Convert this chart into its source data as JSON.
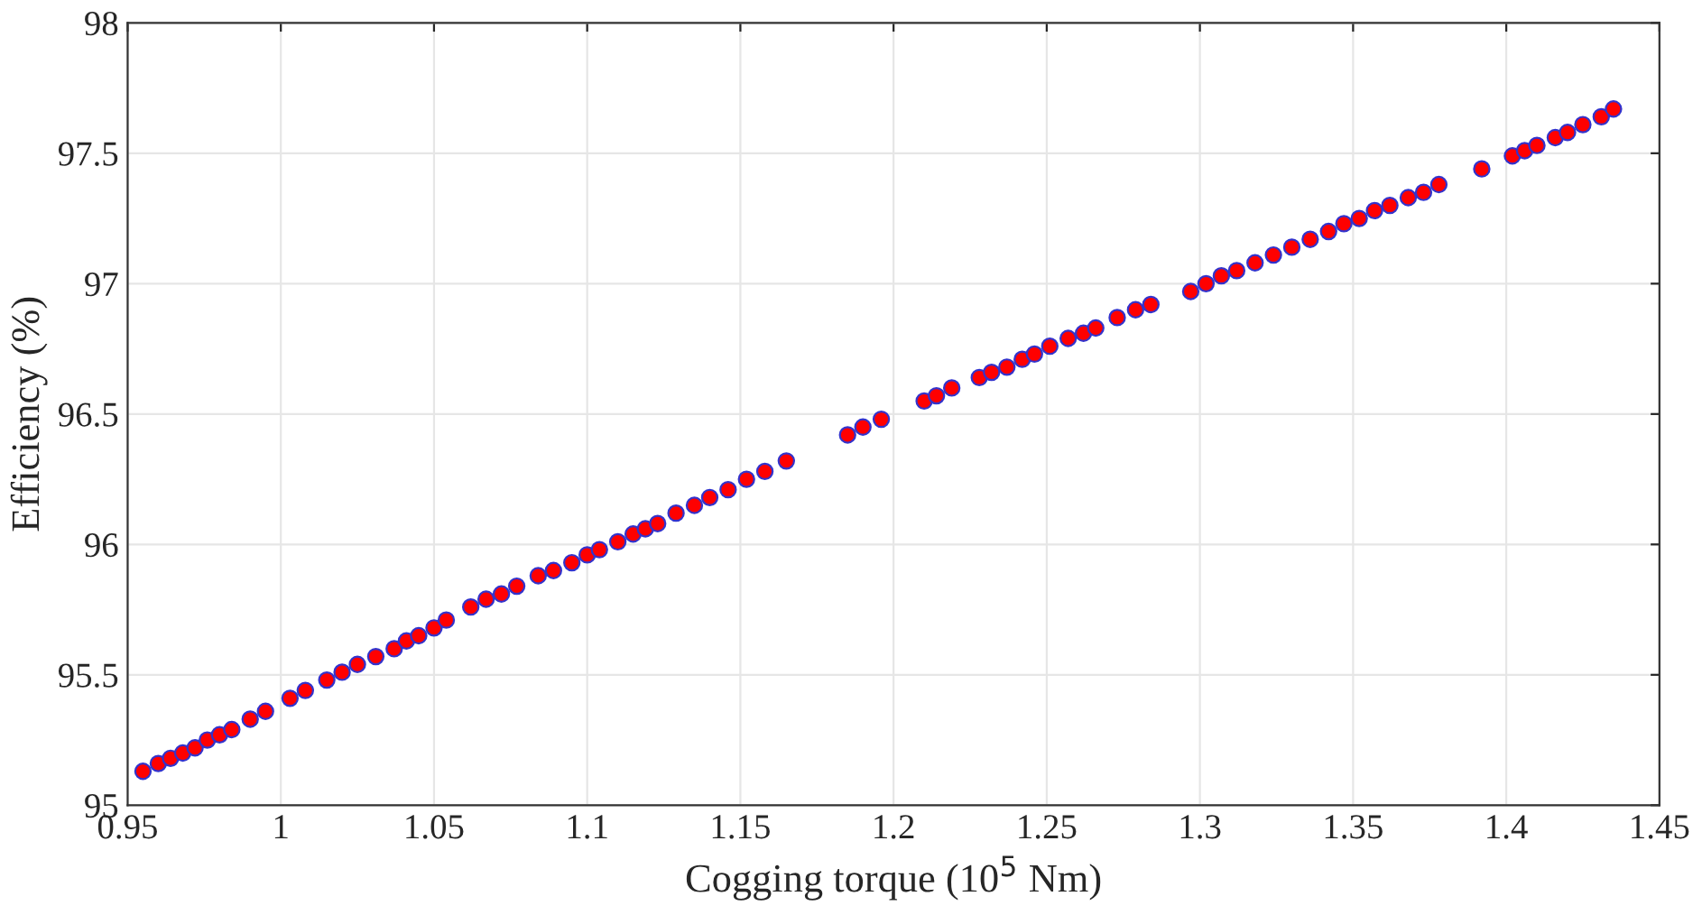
{
  "chart_data": {
    "type": "scatter",
    "xlabel": "Cogging torque (10$^{5}$ Nm)",
    "ylabel": "Efficiency (%)",
    "x": [
      0.955,
      0.96,
      0.964,
      0.968,
      0.972,
      0.976,
      0.98,
      0.984,
      0.99,
      0.995,
      1.003,
      1.008,
      1.015,
      1.02,
      1.025,
      1.031,
      1.037,
      1.041,
      1.045,
      1.05,
      1.054,
      1.062,
      1.067,
      1.072,
      1.077,
      1.084,
      1.089,
      1.095,
      1.1,
      1.104,
      1.11,
      1.115,
      1.119,
      1.123,
      1.129,
      1.135,
      1.14,
      1.146,
      1.152,
      1.158,
      1.165,
      1.185,
      1.19,
      1.196,
      1.21,
      1.214,
      1.219,
      1.228,
      1.232,
      1.237,
      1.242,
      1.246,
      1.251,
      1.257,
      1.262,
      1.266,
      1.273,
      1.279,
      1.284,
      1.297,
      1.302,
      1.307,
      1.312,
      1.318,
      1.324,
      1.33,
      1.336,
      1.342,
      1.347,
      1.352,
      1.357,
      1.362,
      1.368,
      1.373,
      1.378,
      1.392,
      1.402,
      1.406,
      1.41,
      1.416,
      1.42,
      1.425,
      1.431,
      1.435
    ],
    "series": [
      {
        "color": "#ff0000",
        "values": [
          95.13,
          95.16,
          95.18,
          95.2,
          95.22,
          95.25,
          95.27,
          95.29,
          95.33,
          95.36,
          95.41,
          95.44,
          95.48,
          95.51,
          95.54,
          95.57,
          95.6,
          95.63,
          95.65,
          95.68,
          95.71,
          95.76,
          95.79,
          95.81,
          95.84,
          95.88,
          95.9,
          95.93,
          95.96,
          95.98,
          96.01,
          96.04,
          96.06,
          96.08,
          96.12,
          96.15,
          96.18,
          96.21,
          96.25,
          96.28,
          96.32,
          96.42,
          96.45,
          96.48,
          96.55,
          96.57,
          96.6,
          96.64,
          96.66,
          96.68,
          96.71,
          96.73,
          96.76,
          96.79,
          96.81,
          96.83,
          96.87,
          96.9,
          96.92,
          96.97,
          97.0,
          97.03,
          97.05,
          97.08,
          97.11,
          97.14,
          97.17,
          97.2,
          97.23,
          97.25,
          97.28,
          97.3,
          97.33,
          97.35,
          97.38,
          97.44,
          97.49,
          97.51,
          97.53,
          97.56,
          97.58,
          97.61,
          97.64,
          97.67
        ]
      }
    ],
    "xlim": [
      0.95,
      1.45
    ],
    "xticks": [
      0.95,
      1,
      1.05,
      1.1,
      1.15,
      1.2,
      1.25,
      1.3,
      1.35,
      1.4,
      1.45
    ],
    "ylim": [
      95,
      98
    ],
    "yticks": [
      95,
      95.5,
      96,
      96.5,
      97,
      97.5,
      98
    ],
    "grid": true,
    "marker": "circle",
    "legend": false
  }
}
